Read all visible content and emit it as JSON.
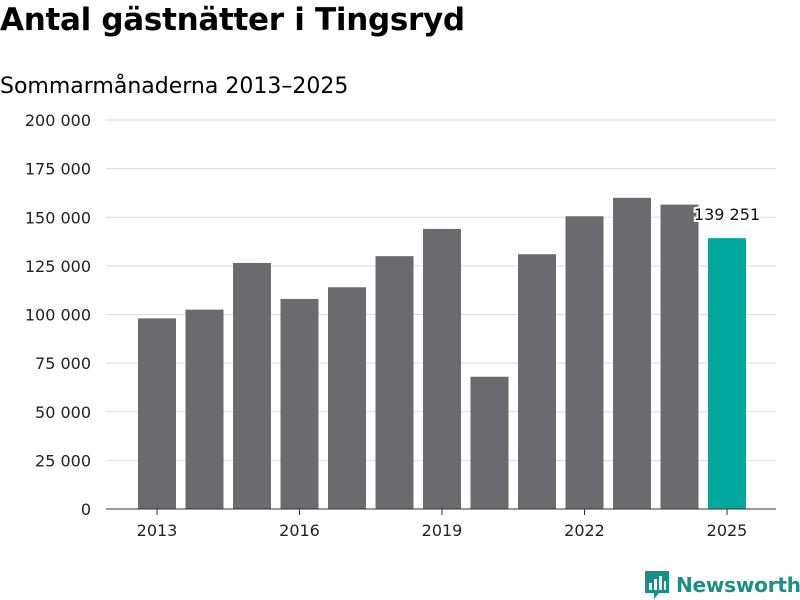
{
  "title": "Antal gästnätter i Tingsryd",
  "subtitle": "Sommarmånaderna 2013–2025",
  "brand": {
    "name": "Newsworthy",
    "icon": "bar-chart-icon",
    "color": "#1a8f86"
  },
  "colors": {
    "bar": "#6b6a6f",
    "highlight": "#00a79d",
    "grid": "#dedede",
    "axis": "#333333"
  },
  "chart_data": {
    "type": "bar",
    "categories": [
      2013,
      2014,
      2015,
      2016,
      2017,
      2018,
      2019,
      2020,
      2021,
      2022,
      2023,
      2024,
      2025
    ],
    "values": [
      98000,
      102500,
      126500,
      108000,
      114000,
      130000,
      144000,
      68000,
      131000,
      150500,
      160000,
      156500,
      139251
    ],
    "highlight_index": 12,
    "data_label": "139 251",
    "x_tick_labels": [
      "2013",
      "2016",
      "2019",
      "2022",
      "2025"
    ],
    "x_tick_categories": [
      2013,
      2016,
      2019,
      2022,
      2025
    ],
    "y_ticks": [
      0,
      25000,
      50000,
      75000,
      100000,
      125000,
      150000,
      175000,
      200000
    ],
    "y_tick_labels": [
      "0",
      "25 000",
      "50 000",
      "75 000",
      "100 000",
      "125 000",
      "150 000",
      "175 000",
      "200 000"
    ],
    "ylim": [
      0,
      200000
    ],
    "grid": true,
    "legend": false
  }
}
